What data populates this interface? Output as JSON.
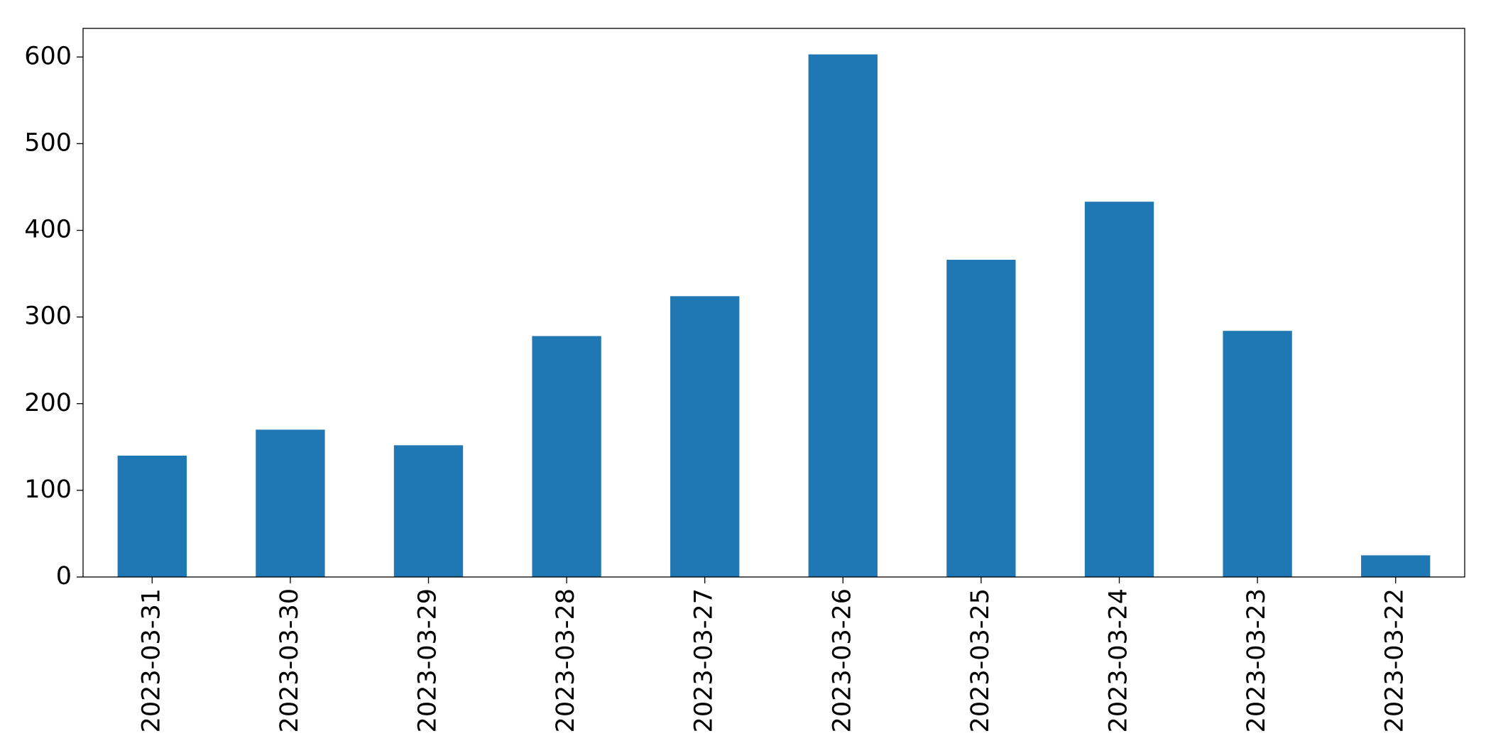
{
  "chart_data": {
    "type": "bar",
    "categories": [
      "2023-03-31",
      "2023-03-30",
      "2023-03-29",
      "2023-03-28",
      "2023-03-27",
      "2023-03-26",
      "2023-03-25",
      "2023-03-24",
      "2023-03-23",
      "2023-03-22"
    ],
    "values": [
      140,
      170,
      152,
      278,
      324,
      603,
      366,
      433,
      284,
      25
    ],
    "color": "#1f77b4",
    "ylim": [
      0,
      633
    ],
    "yticks": [
      0,
      100,
      200,
      300,
      400,
      500,
      600
    ],
    "grid": false
  }
}
